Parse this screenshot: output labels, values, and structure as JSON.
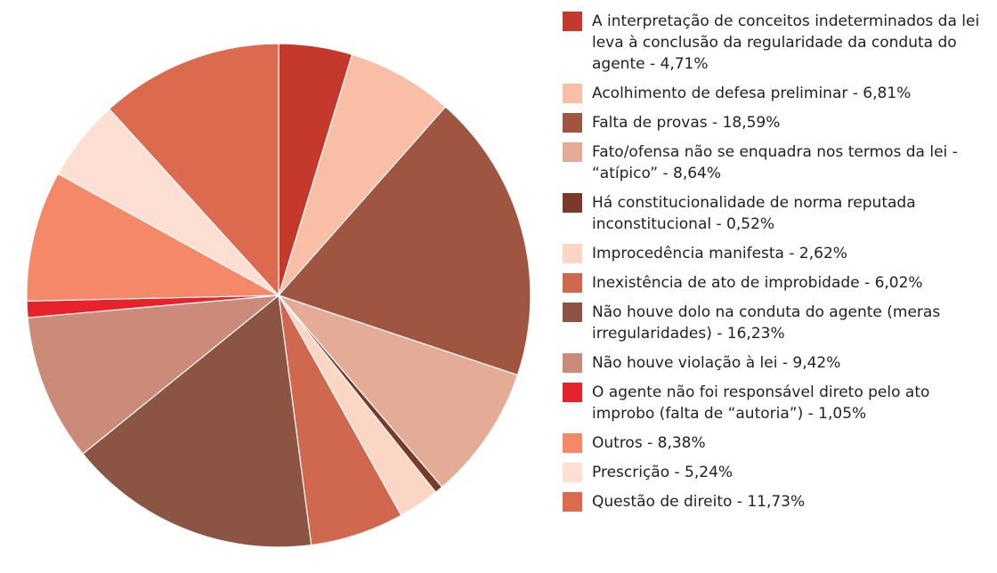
{
  "chart_data": {
    "type": "pie",
    "categories": [
      "A interpretação de conceitos indeterminados da lei leva à conclusão da regularidade da conduta do agente - 4,71%",
      "Acolhimento de defesa preliminar - 6,81%",
      "Falta de provas - 18,59%",
      "Fato/ofensa não se enquadra nos termos da lei - “atípico” - 8,64%",
      "Há constitucionalidade de norma reputada inconstitucional - 0,52%",
      "Improcedência manifesta - 2,62%",
      "Inexistência de ato de improbidade - 6,02%",
      "Não houve dolo na conduta do agente (meras irregularidades) - 16,23%",
      "Não houve violação à lei - 9,42%",
      "O agente não foi responsável direto pelo ato improbo (falta de “autoria”) - 1,05%",
      "Outros - 8,38%",
      "Prescrição - 5,24%",
      "Questão de direito - 11,73%"
    ],
    "values": [
      4.71,
      6.81,
      18.59,
      8.64,
      0.52,
      2.62,
      6.02,
      16.23,
      9.42,
      1.05,
      8.38,
      5.24,
      11.73
    ],
    "colors": [
      "#c4392b",
      "#f9bea6",
      "#a05541",
      "#e4ab97",
      "#7a3a2a",
      "#fcd6c5",
      "#d0674f",
      "#8c5442",
      "#cc8b78",
      "#e8222b",
      "#f58868",
      "#fde0d3",
      "#dc6a4e"
    ],
    "legend": "right"
  }
}
